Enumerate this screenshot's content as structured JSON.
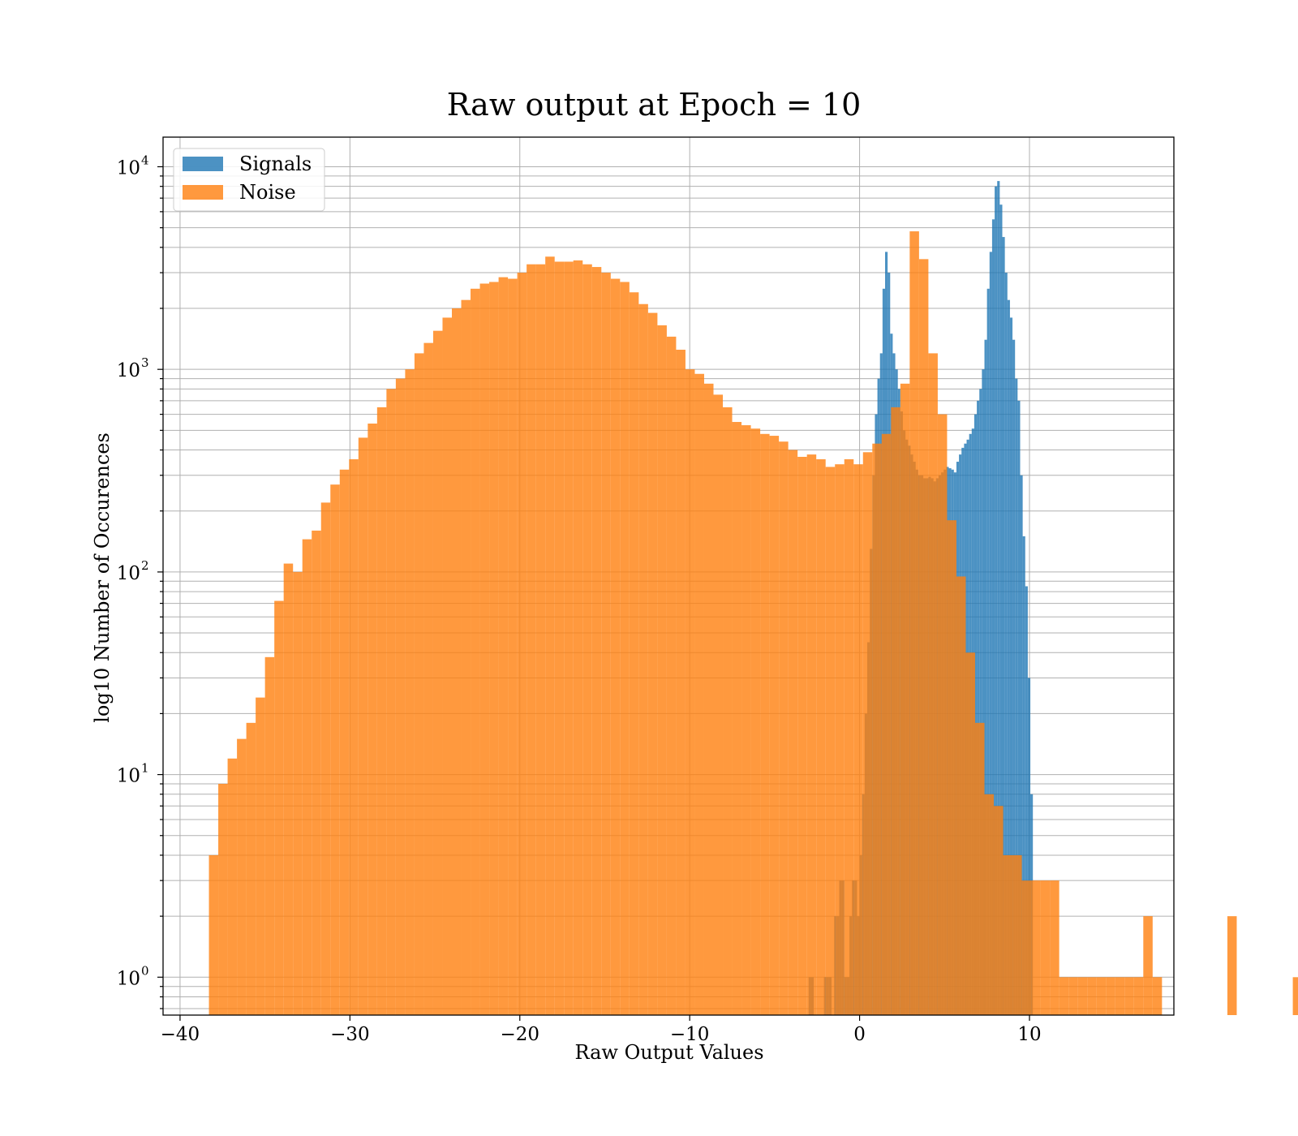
{
  "chart_data": {
    "type": "histogram",
    "title": "Raw output at Epoch = 10",
    "xlabel": "Raw Output Values",
    "ylabel": "log10 Number of Occurences",
    "xlim": [
      -41,
      18.5
    ],
    "ylim": [
      0.65,
      14000
    ],
    "yscale": "log",
    "grid": true,
    "legend_position": "top-left",
    "x_ticks": [
      -40,
      -30,
      -20,
      -10,
      0,
      10
    ],
    "x_tick_labels": [
      "−40",
      "−30",
      "−20",
      "−10",
      "0",
      "10"
    ],
    "y_ticks": [
      {
        "value": 1,
        "base": "10",
        "exp": "0"
      },
      {
        "value": 10,
        "base": "10",
        "exp": "1"
      },
      {
        "value": 100,
        "base": "10",
        "exp": "2"
      },
      {
        "value": 1000,
        "base": "10",
        "exp": "3"
      },
      {
        "value": 10000,
        "base": "10",
        "exp": "4"
      }
    ],
    "series": [
      {
        "name": "Signals",
        "color": "#1f77b4",
        "opacity": 0.8,
        "bin_start": -3.0,
        "bin_width": 0.15,
        "counts": [
          1,
          1,
          0,
          0,
          0,
          0,
          1,
          1,
          1,
          0,
          2,
          2,
          3,
          3,
          1,
          1,
          2,
          3,
          3,
          2,
          4,
          8,
          20,
          45,
          130,
          300,
          600,
          900,
          1200,
          2500,
          3800,
          3000,
          1500,
          1200,
          1000,
          800,
          620,
          500,
          450,
          420,
          380,
          350,
          320,
          300,
          300,
          290,
          290,
          295,
          290,
          280,
          290,
          300,
          310,
          320,
          330,
          325,
          320,
          310,
          350,
          380,
          410,
          430,
          450,
          480,
          510,
          600,
          700,
          800,
          1000,
          1400,
          2500,
          3800,
          5500,
          8000,
          8500,
          6500,
          4500,
          3000,
          2200,
          1800,
          1400,
          900,
          700,
          300,
          150,
          85,
          30,
          8
        ]
      },
      {
        "name": "Noise",
        "color": "#ff7f0e",
        "opacity": 0.8,
        "bin_start": -38.3,
        "bin_width": 0.55,
        "counts": [
          4,
          9,
          12,
          15,
          18,
          24,
          38,
          72,
          110,
          100,
          145,
          160,
          220,
          270,
          320,
          360,
          460,
          540,
          650,
          800,
          900,
          1000,
          1200,
          1350,
          1550,
          1800,
          2000,
          2200,
          2500,
          2650,
          2700,
          2850,
          2800,
          3000,
          3300,
          3300,
          3600,
          3400,
          3400,
          3450,
          3300,
          3200,
          3000,
          2800,
          2700,
          2400,
          2100,
          1900,
          1650,
          1450,
          1250,
          1000,
          950,
          850,
          750,
          650,
          550,
          530,
          510,
          480,
          470,
          440,
          400,
          370,
          380,
          360,
          330,
          340,
          360,
          340,
          390,
          430,
          480,
          650,
          850,
          4800,
          3500,
          1200,
          600,
          180,
          95,
          40,
          18,
          8,
          7,
          4,
          4,
          3,
          3,
          3,
          3,
          1,
          1,
          1,
          1,
          1,
          1,
          1,
          1,
          1,
          2,
          1,
          0,
          0,
          0,
          0,
          0,
          0,
          0,
          2,
          0,
          0,
          0,
          0,
          0,
          0,
          1
        ]
      }
    ]
  }
}
